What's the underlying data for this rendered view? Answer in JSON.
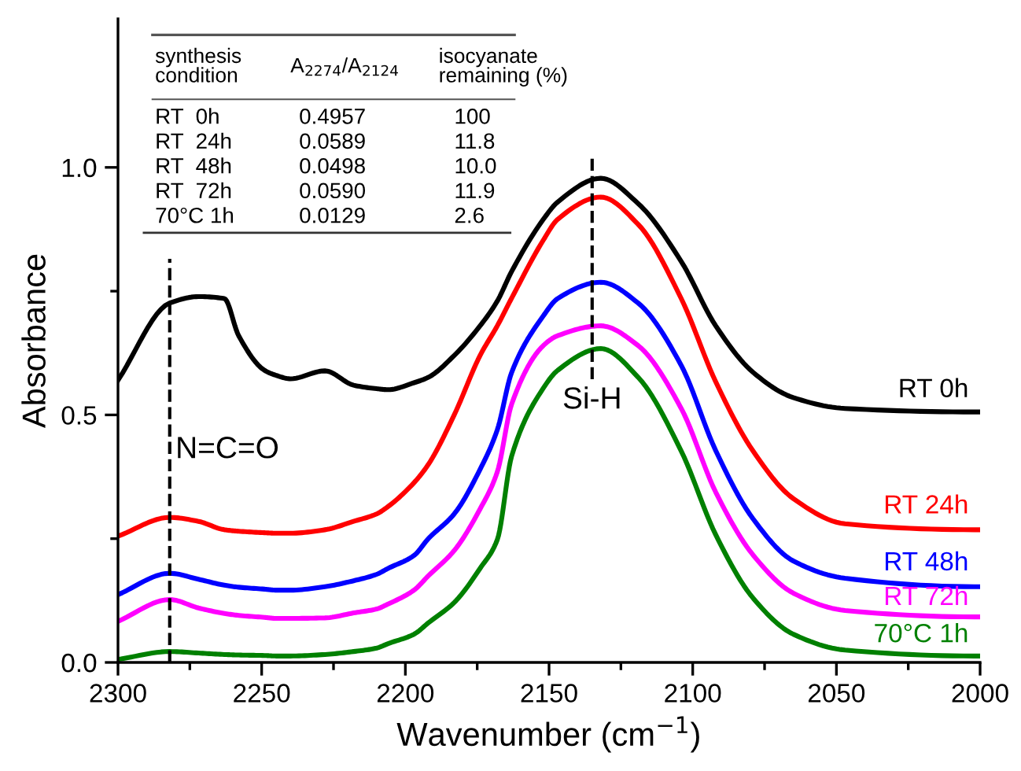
{
  "chart_data": {
    "type": "line",
    "xlabel": "Wavenumber (cm$^{−1}$)",
    "ylabel": "Absorbance",
    "xlim": [
      2300,
      2000
    ],
    "ylim": [
      0,
      1.3
    ],
    "xticks": [
      2300,
      {
        "value": 2275,
        "label": null
      },
      2250,
      {
        "value": 2225,
        "label": null
      },
      2200,
      {
        "value": 2175,
        "label": null
      },
      2150,
      {
        "value": 2125,
        "label": null
      },
      2100,
      {
        "value": 2075,
        "label": null
      },
      2050,
      {
        "value": 2025,
        "label": null
      },
      2000
    ],
    "yticks": [
      {
        "value": 0,
        "label": "0.0"
      },
      {
        "value": 0.25,
        "label": null
      },
      {
        "value": 0.5,
        "label": "0.5"
      },
      {
        "value": 0.75,
        "label": null
      },
      {
        "value": 1.0,
        "label": "1.0"
      }
    ],
    "grid": false,
    "legend": false,
    "line_style": "solid",
    "marker": "none",
    "x": [
      2300,
      2282,
      2272,
      2263,
      2258,
      2249,
      2245,
      2240,
      2228,
      2218,
      2210,
      2206,
      2197,
      2192,
      2183,
      2174,
      2168,
      2163,
      2152,
      2147,
      2132,
      2119,
      2104,
      2092,
      2079,
      2065,
      2047,
      2002,
      2000
    ],
    "series": [
      {
        "name": "RT 0h",
        "color": "#000000",
        "values": [
          0.57,
          0.726,
          0.739,
          0.735,
          0.66,
          0.59,
          0.58,
          0.573,
          0.589,
          0.56,
          0.553,
          0.551,
          0.565,
          0.576,
          0.62,
          0.68,
          0.73,
          0.79,
          0.895,
          0.93,
          0.978,
          0.927,
          0.81,
          0.68,
          0.586,
          0.535,
          0.513,
          0.506,
          0.506
        ]
      },
      {
        "name": "RT 24h",
        "color": "#ff0000",
        "values": [
          0.255,
          0.293,
          0.285,
          0.268,
          0.265,
          0.262,
          0.261,
          0.261,
          0.268,
          0.285,
          0.3,
          0.315,
          0.363,
          0.4,
          0.5,
          0.62,
          0.68,
          0.736,
          0.853,
          0.895,
          0.94,
          0.885,
          0.735,
          0.567,
          0.427,
          0.331,
          0.28,
          0.268,
          0.268
        ]
      },
      {
        "name": "RT 48h",
        "color": "#0000ff",
        "values": [
          0.137,
          0.18,
          0.168,
          0.156,
          0.152,
          0.148,
          0.146,
          0.146,
          0.153,
          0.165,
          0.178,
          0.19,
          0.216,
          0.25,
          0.3,
          0.39,
          0.47,
          0.586,
          0.7,
          0.735,
          0.768,
          0.726,
          0.6,
          0.428,
          0.29,
          0.205,
          0.17,
          0.153,
          0.153
        ]
      },
      {
        "name": "RT 72h",
        "color": "#ff00ff",
        "values": [
          0.083,
          0.127,
          0.11,
          0.099,
          0.095,
          0.091,
          0.089,
          0.089,
          0.09,
          0.1,
          0.108,
          0.118,
          0.146,
          0.175,
          0.226,
          0.31,
          0.385,
          0.522,
          0.64,
          0.66,
          0.68,
          0.64,
          0.513,
          0.344,
          0.217,
          0.14,
          0.105,
          0.092,
          0.092
        ]
      },
      {
        "name": "70°C 1h",
        "color": "#008000",
        "values": [
          0.006,
          0.022,
          0.019,
          0.016,
          0.015,
          0.014,
          0.013,
          0.013,
          0.016,
          0.022,
          0.029,
          0.038,
          0.057,
          0.08,
          0.121,
          0.19,
          0.248,
          0.417,
          0.554,
          0.59,
          0.634,
          0.576,
          0.427,
          0.258,
          0.13,
          0.057,
          0.025,
          0.013,
          0.013
        ]
      }
    ],
    "ref_lines": [
      {
        "axis": "x",
        "value": 2282,
        "label": "N=C=O",
        "color": "#000000",
        "line_style": "dashed"
      },
      {
        "axis": "x",
        "value": 2135,
        "label": "Si-H",
        "color": "#000000",
        "line_style": "dashed"
      }
    ],
    "annotations": [
      "synthesis\ncondition",
      "A$_{2274}$/A$_{2124}$",
      "isocyanate\nremaining (%)",
      "RT  0h",
      "0.4957",
      "100",
      "RT  24h",
      "0.0589",
      "11.8",
      "RT  48h",
      "0.0498",
      "10.0",
      "RT  72h",
      "0.0590",
      "11.9",
      "70°C 1h",
      "0.0129",
      "2.6"
    ]
  }
}
